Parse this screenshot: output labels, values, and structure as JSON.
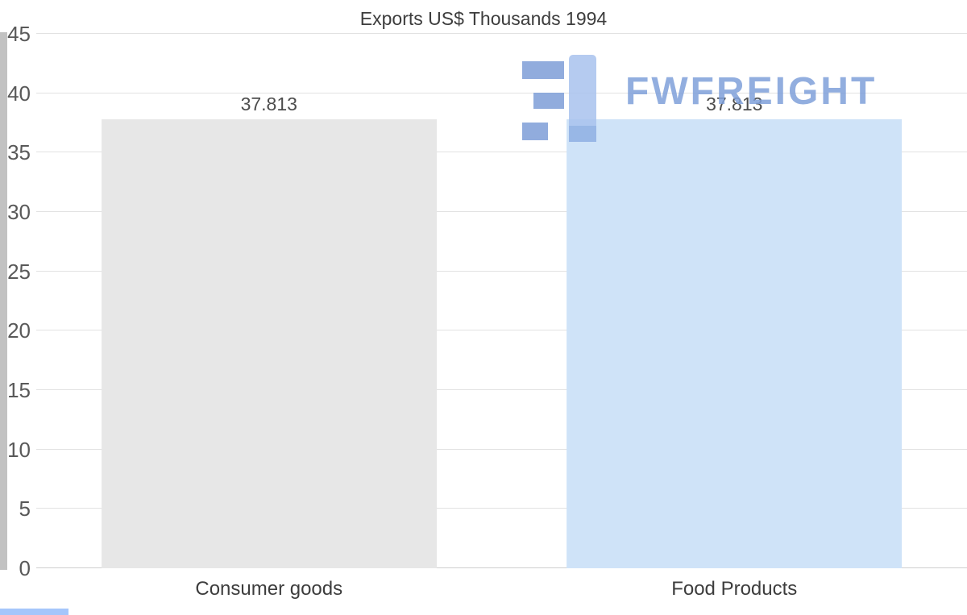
{
  "title": "Exports US$ Thousands 1994",
  "watermark": {
    "text": "FWFREIGHT"
  },
  "chart_data": {
    "type": "bar",
    "title": "Exports US$ Thousands 1994",
    "categories": [
      "Consumer goods",
      "Food Products"
    ],
    "values": [
      37.813,
      37.813
    ],
    "value_labels": [
      "37.813",
      "37.813"
    ],
    "xlabel": "",
    "ylabel": "",
    "ylim": [
      0,
      45
    ],
    "yticks": [
      0,
      5,
      10,
      15,
      20,
      25,
      30,
      35,
      40,
      45
    ],
    "grid": "horizontal",
    "legend": "none",
    "bar_colors": [
      "#e7e7e7",
      "#cfe3f8"
    ],
    "colors": {
      "title_text": "#3d3d3d",
      "tick_text": "#595959",
      "value_text": "#4d4d4d",
      "gridline": "#e2e2e2",
      "watermark_blue": "#7fa0da",
      "left_strip": "#c2c2c2",
      "corner_accent": "#a5c6fb"
    }
  }
}
